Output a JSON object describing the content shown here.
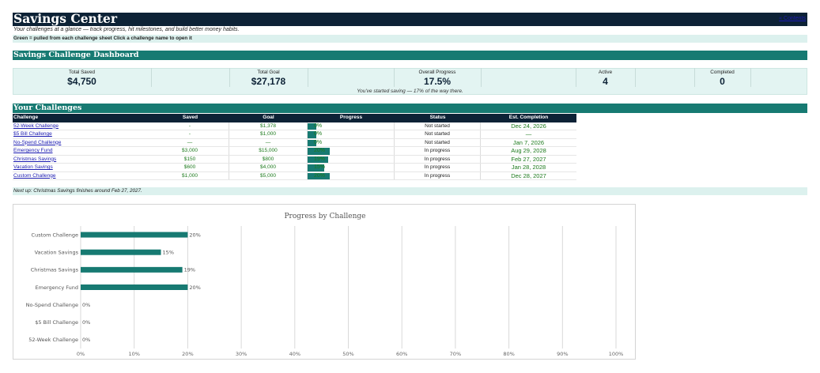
{
  "header": {
    "title": "Savings Center",
    "contents_link": "« Contents",
    "subtitle": "Your challenges at a glance — track progress, hit milestones, and build better money habits.",
    "legend": "Green = pulled from each challenge sheet      Click a challenge name to open it"
  },
  "dashboard": {
    "section_title": "Savings Challenge Dashboard",
    "kpis": [
      {
        "label": "Total Saved",
        "value": "$4,750"
      },
      {
        "label": "Total Goal",
        "value": "$27,178"
      },
      {
        "label": "Overall Progress",
        "value": "17.5%"
      },
      {
        "label": "Active",
        "value": "4"
      },
      {
        "label": "Completed",
        "value": "0"
      }
    ],
    "note": "You've started saving — 17% of the way there."
  },
  "challenges": {
    "section_title": "Your Challenges",
    "columns": [
      "Challenge",
      "Saved",
      "Goal",
      "Progress",
      "Status",
      "Est. Completion"
    ],
    "rows": [
      {
        "name": "52-Week Challenge",
        "saved": "-",
        "goal": "$1,378",
        "progress": 0,
        "progress_label": "0%",
        "status": "Not started",
        "est": "Dec 24, 2026"
      },
      {
        "name": "$5 Bill Challenge",
        "saved": "-",
        "goal": "$1,000",
        "progress": 0,
        "progress_label": "0%",
        "status": "Not started",
        "est": "—"
      },
      {
        "name": "No-Spend Challenge",
        "saved": "—",
        "goal": "—",
        "progress": 0,
        "progress_label": "0%",
        "status": "Not started",
        "est": "Jan 7, 2026"
      },
      {
        "name": "Emergency Fund",
        "saved": "$3,000",
        "goal": "$15,000",
        "progress": 0.2,
        "progress_label": "20%",
        "status": "In progress",
        "est": "Aug 29, 2028"
      },
      {
        "name": "Christmas Savings",
        "saved": "$150",
        "goal": "$800",
        "progress": 0.19,
        "progress_label": "19%",
        "status": "In progress",
        "est": "Feb 27, 2027"
      },
      {
        "name": "Vacation Savings",
        "saved": "$600",
        "goal": "$4,000",
        "progress": 0.15,
        "progress_label": "15%",
        "status": "In progress",
        "est": "Jan 28, 2028"
      },
      {
        "name": "Custom Challenge",
        "saved": "$1,000",
        "goal": "$5,000",
        "progress": 0.2,
        "progress_label": "20%",
        "status": "In progress",
        "est": "Dec 28, 2027"
      }
    ],
    "next_up": "Next up: Christmas Savings finishes around Feb 27, 2027."
  },
  "colors": {
    "navy": "#0d2236",
    "teal": "#177a72",
    "mint": "#dcf1ee",
    "green_text": "#1d7a1d",
    "link": "#1a1ab0"
  },
  "chart_data": {
    "type": "bar",
    "orientation": "horizontal",
    "title": "Progress by Challenge",
    "categories": [
      "Custom Challenge",
      "Vacation Savings",
      "Christmas Savings",
      "Emergency Fund",
      "No-Spend Challenge",
      "$5 Bill Challenge",
      "52-Week Challenge"
    ],
    "values": [
      0.2,
      0.15,
      0.19,
      0.2,
      0,
      0,
      0
    ],
    "data_labels": [
      "20%",
      "15%",
      "19%",
      "20%",
      "0%",
      "0%",
      "0%"
    ],
    "x_ticks": [
      "0%",
      "10%",
      "20%",
      "30%",
      "40%",
      "50%",
      "60%",
      "70%",
      "80%",
      "90%",
      "100%"
    ],
    "xlim": [
      0,
      1
    ],
    "grid": true,
    "bar_color": "#177a72"
  }
}
